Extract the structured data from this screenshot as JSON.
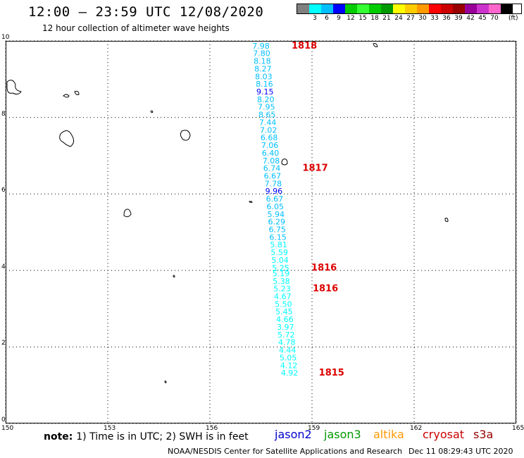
{
  "header": {
    "title": "12:00 – 23:59 UTC 12/08/2020",
    "subtitle": "12 hour collection of altimeter wave heights"
  },
  "legend": {
    "colors": [
      "#808080",
      "#00ffff",
      "#00bfff",
      "#0000ff",
      "#00cc00",
      "#33ff33",
      "#00cc00",
      "#009900",
      "#ffff00",
      "#ffcc00",
      "#ff9900",
      "#ff0000",
      "#cc0000",
      "#990000",
      "#990099",
      "#cc33cc",
      "#ff66cc",
      "#000000"
    ],
    "labels": [
      "3",
      "6",
      "9",
      "12",
      "15",
      "18",
      "21",
      "24",
      "27",
      "30",
      "33",
      "36",
      "39",
      "42",
      "45",
      "70"
    ],
    "unit": "(ft)"
  },
  "map": {
    "lon_ticks": [
      "150",
      "153",
      "156",
      "159",
      "162",
      "165"
    ],
    "lat_ticks": [
      "0",
      "2",
      "4",
      "6",
      "8",
      "10"
    ],
    "lon_range": [
      150,
      165
    ],
    "lat_range": [
      0,
      10
    ]
  },
  "track": {
    "readings": [
      {
        "value": "7.98",
        "lat": 9.8,
        "lon": 157.5,
        "color": "#00bfff"
      },
      {
        "value": "7.80",
        "lat": 9.6,
        "lon": 157.52,
        "color": "#00bfff"
      },
      {
        "value": "8.18",
        "lat": 9.4,
        "lon": 157.54,
        "color": "#00bfff"
      },
      {
        "value": "8.27",
        "lat": 9.2,
        "lon": 157.56,
        "color": "#00bfff"
      },
      {
        "value": "8.03",
        "lat": 9.0,
        "lon": 157.58,
        "color": "#00bfff"
      },
      {
        "value": "8.16",
        "lat": 8.8,
        "lon": 157.6,
        "color": "#00bfff"
      },
      {
        "value": "9.15",
        "lat": 8.6,
        "lon": 157.62,
        "color": "#0000ff"
      },
      {
        "value": "8.20",
        "lat": 8.4,
        "lon": 157.64,
        "color": "#00bfff"
      },
      {
        "value": "7.95",
        "lat": 8.2,
        "lon": 157.66,
        "color": "#00bfff"
      },
      {
        "value": "8.65",
        "lat": 8.0,
        "lon": 157.68,
        "color": "#00bfff"
      },
      {
        "value": "7.44",
        "lat": 7.8,
        "lon": 157.7,
        "color": "#00bfff"
      },
      {
        "value": "7.02",
        "lat": 7.6,
        "lon": 157.72,
        "color": "#00bfff"
      },
      {
        "value": "6.68",
        "lat": 7.4,
        "lon": 157.74,
        "color": "#00bfff"
      },
      {
        "value": "7.06",
        "lat": 7.2,
        "lon": 157.76,
        "color": "#00bfff"
      },
      {
        "value": "6.40",
        "lat": 7.0,
        "lon": 157.78,
        "color": "#00bfff"
      },
      {
        "value": "7.08",
        "lat": 6.8,
        "lon": 157.8,
        "color": "#00bfff"
      },
      {
        "value": "6.74",
        "lat": 6.6,
        "lon": 157.82,
        "color": "#00bfff"
      },
      {
        "value": "6.67",
        "lat": 6.4,
        "lon": 157.84,
        "color": "#00bfff"
      },
      {
        "value": "7.78",
        "lat": 6.2,
        "lon": 157.86,
        "color": "#00bfff"
      },
      {
        "value": "9.96",
        "lat": 6.0,
        "lon": 157.88,
        "color": "#0000ff"
      },
      {
        "value": "6.67",
        "lat": 5.8,
        "lon": 157.9,
        "color": "#00bfff"
      },
      {
        "value": "6.05",
        "lat": 5.6,
        "lon": 157.92,
        "color": "#00bfff"
      },
      {
        "value": "5.94",
        "lat": 5.4,
        "lon": 157.94,
        "color": "#00bfff"
      },
      {
        "value": "6.29",
        "lat": 5.2,
        "lon": 157.96,
        "color": "#00bfff"
      },
      {
        "value": "6.75",
        "lat": 5.0,
        "lon": 157.98,
        "color": "#00bfff"
      },
      {
        "value": "6.15",
        "lat": 4.8,
        "lon": 158.0,
        "color": "#00bfff"
      },
      {
        "value": "5.81",
        "lat": 4.6,
        "lon": 158.02,
        "color": "#00ffff"
      },
      {
        "value": "5.59",
        "lat": 4.4,
        "lon": 158.04,
        "color": "#00ffff"
      },
      {
        "value": "5.04",
        "lat": 4.2,
        "lon": 158.06,
        "color": "#00ffff"
      },
      {
        "value": "5.25",
        "lat": 4.0,
        "lon": 158.08,
        "color": "#00ffff"
      },
      {
        "value": "5.19",
        "lat": 3.85,
        "lon": 158.09,
        "color": "#00ffff"
      },
      {
        "value": "5.38",
        "lat": 3.65,
        "lon": 158.1,
        "color": "#00ffff"
      },
      {
        "value": "5.23",
        "lat": 3.45,
        "lon": 158.12,
        "color": "#00ffff"
      },
      {
        "value": "4.67",
        "lat": 3.25,
        "lon": 158.14,
        "color": "#00ffff"
      },
      {
        "value": "5.50",
        "lat": 3.05,
        "lon": 158.16,
        "color": "#00ffff"
      },
      {
        "value": "5.45",
        "lat": 2.85,
        "lon": 158.18,
        "color": "#00ffff"
      },
      {
        "value": "4.66",
        "lat": 2.65,
        "lon": 158.2,
        "color": "#00ffff"
      },
      {
        "value": "3.97",
        "lat": 2.45,
        "lon": 158.22,
        "color": "#00ffff"
      },
      {
        "value": "5.72",
        "lat": 2.25,
        "lon": 158.24,
        "color": "#00ffff"
      },
      {
        "value": "4.78",
        "lat": 2.05,
        "lon": 158.26,
        "color": "#00ffff"
      },
      {
        "value": "4.44",
        "lat": 1.85,
        "lon": 158.28,
        "color": "#00ffff"
      },
      {
        "value": "5.05",
        "lat": 1.65,
        "lon": 158.3,
        "color": "#00ffff"
      },
      {
        "value": "4.12",
        "lat": 1.45,
        "lon": 158.32,
        "color": "#00ffff"
      },
      {
        "value": "4.92",
        "lat": 1.25,
        "lon": 158.34,
        "color": "#00ffff"
      }
    ],
    "time_marks": [
      {
        "label": "1818",
        "lat": 9.8,
        "lon": 158.4
      },
      {
        "label": "1817",
        "lat": 6.6,
        "lon": 158.72
      },
      {
        "label": "1816",
        "lat": 4.0,
        "lon": 158.98
      },
      {
        "label": "1816",
        "lat": 3.45,
        "lon": 159.02
      },
      {
        "label": "1815",
        "lat": 1.25,
        "lon": 159.2
      }
    ]
  },
  "note": {
    "lead": "note:",
    "text": "1) Time is in UTC; 2) SWH is in feet"
  },
  "satellites": [
    {
      "name": "jason2",
      "color": "#0000cc"
    },
    {
      "name": "jason3",
      "color": "#009900"
    },
    {
      "name": "altika",
      "color": "#ff9900"
    },
    {
      "name": "cryosat",
      "color": "#cc0000"
    },
    {
      "name": "s3a",
      "color": "#990000"
    }
  ],
  "footer": {
    "credit": "NOAA/NESDIS Center for Satellite Applications and Research",
    "timestamp": "Dec 11 08:29:43 UTC 2020"
  }
}
